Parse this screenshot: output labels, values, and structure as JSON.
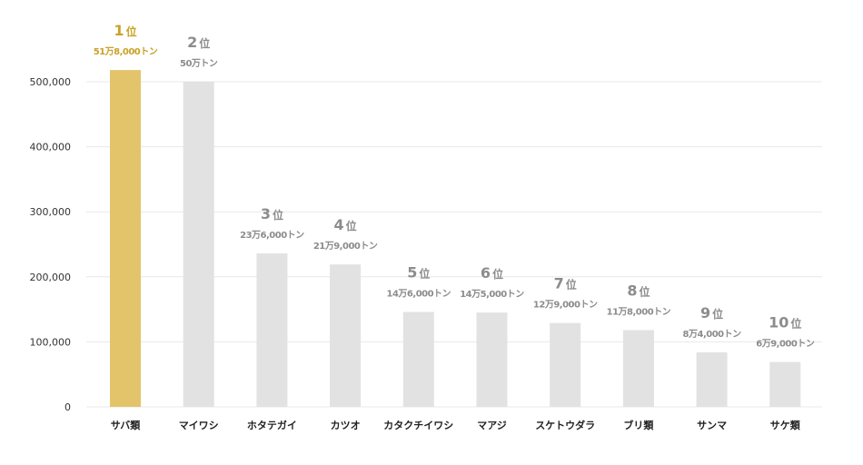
{
  "chart_data": {
    "type": "bar",
    "categories": [
      "サバ類",
      "マイワシ",
      "ホタテガイ",
      "カツオ",
      "カタクチイワシ",
      "マアジ",
      "スケトウダラ",
      "ブリ類",
      "サンマ",
      "サケ類"
    ],
    "values": [
      518000,
      500000,
      236000,
      219000,
      146000,
      145000,
      129000,
      118000,
      84000,
      69000
    ],
    "ranks": [
      "1",
      "2",
      "3",
      "4",
      "5",
      "6",
      "7",
      "8",
      "9",
      "10"
    ],
    "rank_suffix": "位",
    "value_labels": [
      "51万8,000トン",
      "50万トン",
      "23万6,000トン",
      "21万9,000トン",
      "14万6,000トン",
      "14万5,000トン",
      "12万9,000トン",
      "11万8,000トン",
      "8万4,000トン",
      "6万9,000トン"
    ],
    "yticks": [
      "0",
      "100,000",
      "200,000",
      "300,000",
      "400,000",
      "500,000"
    ],
    "ylim": [
      0,
      500000
    ],
    "grid": true,
    "title": "",
    "xlabel": "",
    "ylabel": "",
    "colors": {
      "highlight_bar": "#E3C46A",
      "bar": "#E2E2E2",
      "highlight_text": "#C9A227",
      "text": "#8C8C8C",
      "grid": "#E8E8E8"
    }
  }
}
